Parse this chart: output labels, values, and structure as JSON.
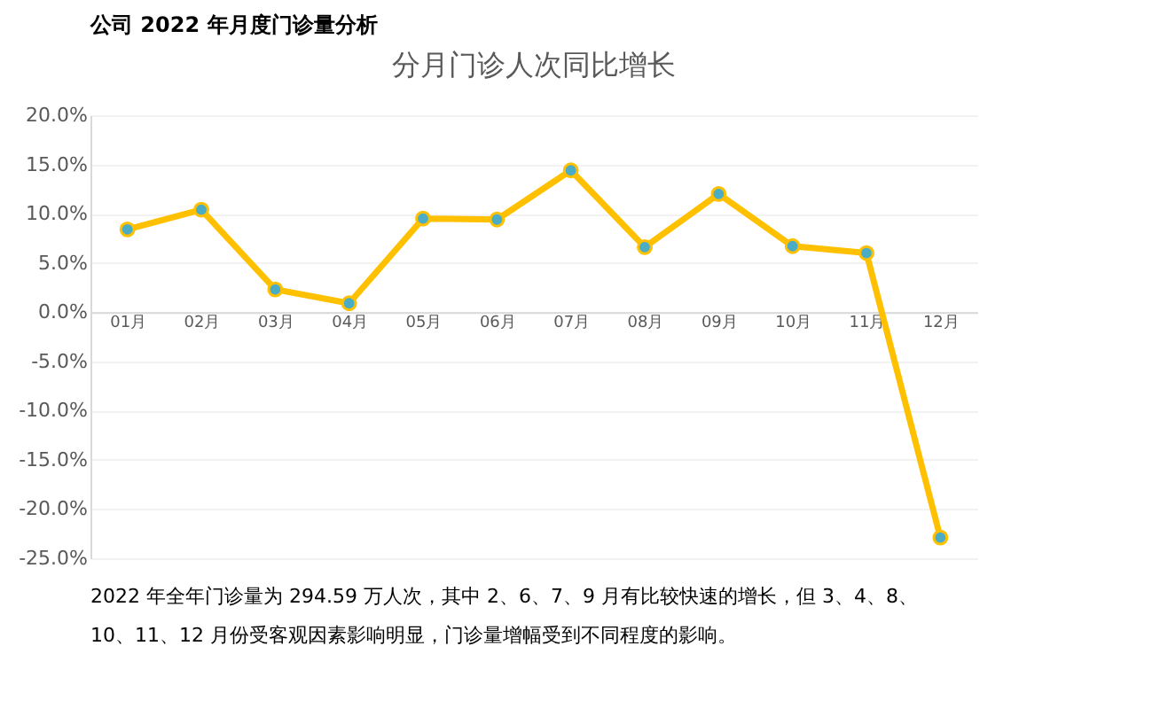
{
  "chart_data": {
    "type": "line",
    "title": "分月门诊人次同比增长",
    "annotations": [
      "公司 2022 年月度门诊量分析",
      "2022 年全年门诊量为 294.59 万人次，其中 2、6、7、9 月有比较快速的增长，但 3、4、8、",
      "10、11、12 月份受客观因素影响明显，门诊量增幅受到不同程度的影响。"
    ],
    "categories": [
      "01月",
      "02月",
      "03月",
      "04月",
      "05月",
      "06月",
      "07月",
      "08月",
      "09月",
      "10月",
      "11月",
      "12月"
    ],
    "series": [
      {
        "color": "#ffc000",
        "values": [
          8.4,
          10.4,
          2.3,
          0.9,
          9.5,
          9.4,
          14.4,
          6.6,
          12.0,
          6.7,
          6.0,
          -22.9
        ]
      }
    ],
    "ylim": [
      -25,
      20
    ],
    "yticks": [
      {
        "value": -25,
        "label": "-25.0%"
      },
      {
        "value": -20,
        "label": "-20.0%"
      },
      {
        "value": -15,
        "label": "-15.0%"
      },
      {
        "value": -10,
        "label": "-10.0%"
      },
      {
        "value": -5,
        "label": "-5.0%"
      },
      {
        "value": 0,
        "label": "0.0%"
      },
      {
        "value": 5,
        "label": "5.0%"
      },
      {
        "value": 10,
        "label": "10.0%"
      },
      {
        "value": 15,
        "label": "15.0%"
      },
      {
        "value": 20,
        "label": "20.0%"
      }
    ],
    "grid": "y",
    "marker": "circle",
    "line_style": "solid"
  }
}
